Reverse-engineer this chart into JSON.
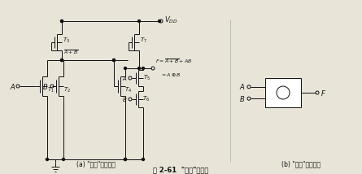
{
  "title": "图 2-61  \"异或\"门电路",
  "subtitle_a": "(a) \"异或\"门电路图",
  "subtitle_b": "(b) \"异或\"门逻辑图",
  "bg_color": "#e8e4d8",
  "line_color": "#111111",
  "fig_width": 4.45,
  "fig_height": 2.14,
  "dpi": 100
}
